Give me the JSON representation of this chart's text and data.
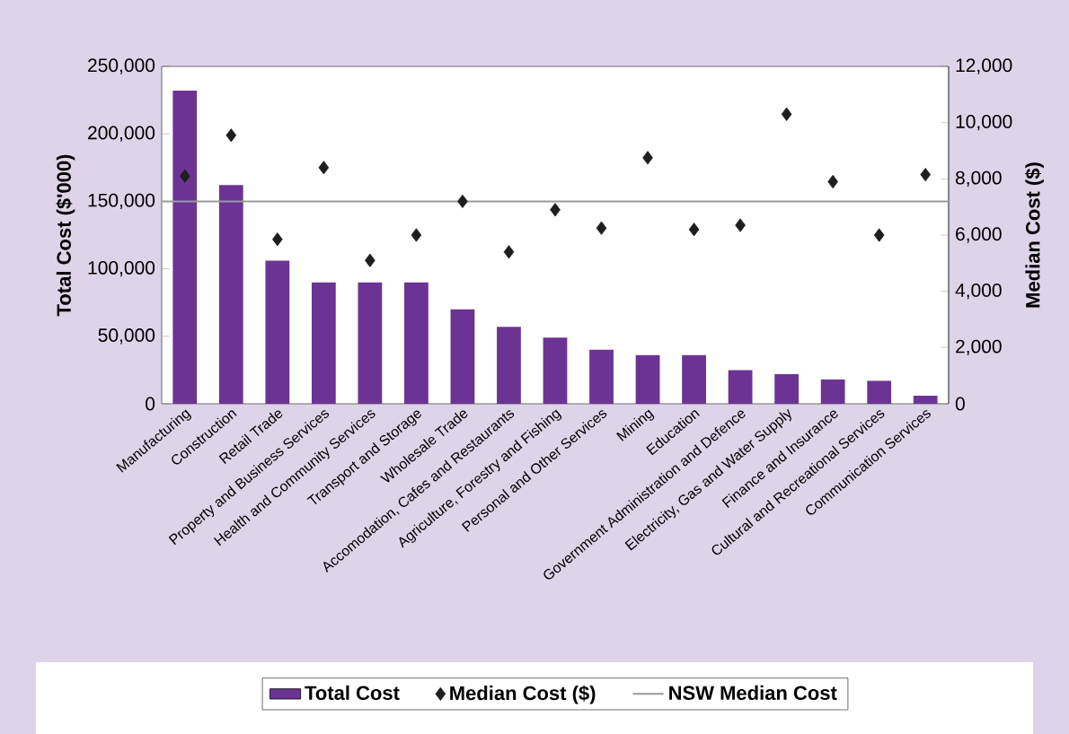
{
  "chart_data": {
    "type": "bar",
    "categories": [
      "Manufacturing",
      "Construction",
      "Retail Trade",
      "Property and Business Services",
      "Health and Community Services",
      "Transport and Storage",
      "Wholesale Trade",
      "Accomodation, Cafes and Restaurants",
      "Agriculture, Forestry and Fishing",
      "Personal and Other Services",
      "Mining",
      "Education",
      "Government Administration and Defence",
      "Electricity, Gas and Water Supply",
      "Finance and Insurance",
      "Cultural and Recreational Services",
      "Communication Services"
    ],
    "series": [
      {
        "name": "Total Cost",
        "color": "#6b3494",
        "values": [
          232000,
          162000,
          106000,
          90000,
          90000,
          90000,
          70000,
          57000,
          49000,
          40000,
          36000,
          36000,
          25000,
          22000,
          18000,
          17000,
          6000
        ]
      },
      {
        "name": "Median Cost ($)",
        "type": "scatter",
        "axis": "y2",
        "marker": "diamond",
        "color": "#1e1e1e",
        "values": [
          8100,
          9550,
          5850,
          8400,
          5100,
          6000,
          7200,
          5400,
          6900,
          6250,
          8750,
          6200,
          6350,
          10300,
          7900,
          6000,
          8150
        ]
      }
    ],
    "ylabel": "Total Cost ($'000)",
    "y2label": "Median Cost ($)",
    "ylim": [
      0,
      250000
    ],
    "yticks": [
      {
        "value": 0,
        "label": "0"
      },
      {
        "value": 50000,
        "label": "50,000"
      },
      {
        "value": 100000,
        "label": "100,000"
      },
      {
        "value": 150000,
        "label": "150,000"
      },
      {
        "value": 200000,
        "label": "200,000"
      },
      {
        "value": 250000,
        "label": "250,000"
      }
    ],
    "y2lim": [
      0,
      12000
    ],
    "y2ticks": [
      {
        "value": 0,
        "label": "0"
      },
      {
        "value": 2000,
        "label": "2,000"
      },
      {
        "value": 4000,
        "label": "4,000"
      },
      {
        "value": 6000,
        "label": "6,000"
      },
      {
        "value": 8000,
        "label": "8,000"
      },
      {
        "value": 10000,
        "label": "10,000"
      },
      {
        "value": 12000,
        "label": "12,000"
      }
    ],
    "ref_lines": [
      {
        "axis": "y2",
        "value": 7200,
        "label": "NSW Median Cost",
        "color": "#999999"
      }
    ],
    "legend": "bottom"
  }
}
